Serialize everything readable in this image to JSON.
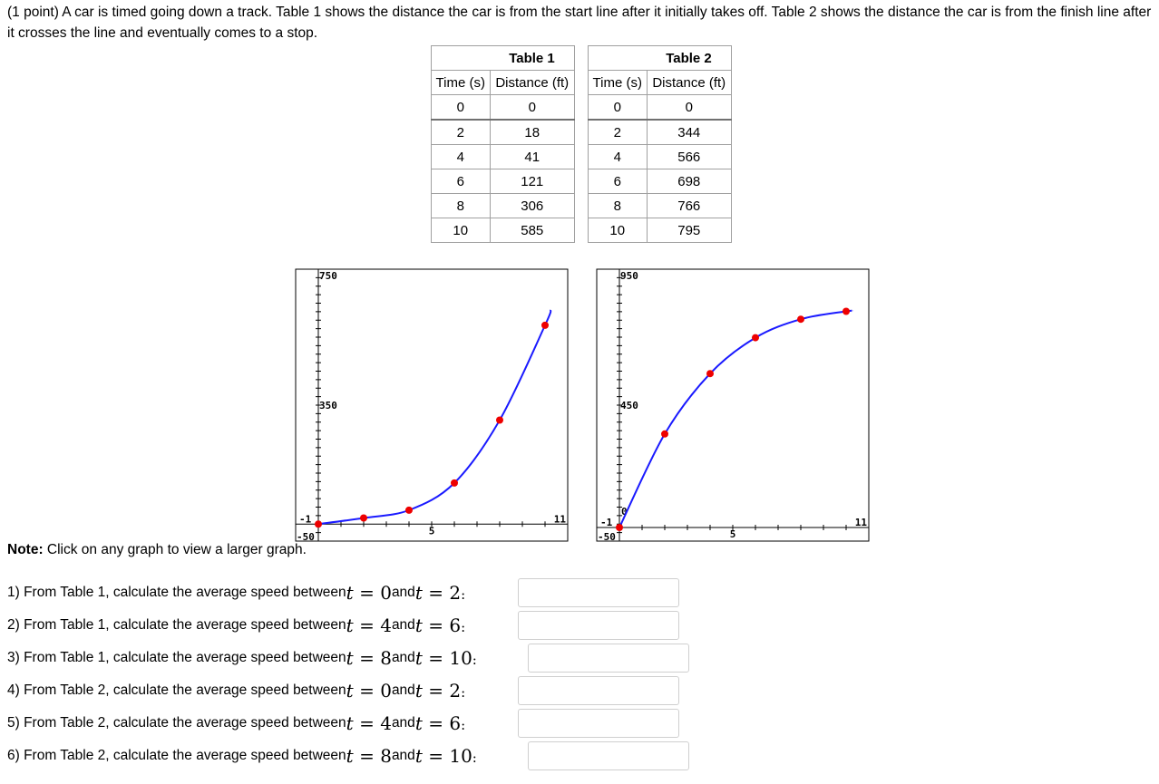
{
  "intro": "(1 point) A car is timed going down a track. Table 1 shows the distance the car is from the start line after it initially takes off. Table 2 shows the distance the car is from the finish line after it crosses the line and eventually comes to a stop.",
  "tables": [
    {
      "caption": "Table 1",
      "headers": [
        "Time (s)",
        "Distance (ft)"
      ],
      "rows": [
        [
          "0",
          "0"
        ],
        [
          "2",
          "18"
        ],
        [
          "4",
          "41"
        ],
        [
          "6",
          "121"
        ],
        [
          "8",
          "306"
        ],
        [
          "10",
          "585"
        ]
      ]
    },
    {
      "caption": "Table 2",
      "headers": [
        "Time (s)",
        "Distance (ft)"
      ],
      "rows": [
        [
          "0",
          "0"
        ],
        [
          "2",
          "344"
        ],
        [
          "4",
          "566"
        ],
        [
          "6",
          "698"
        ],
        [
          "8",
          "766"
        ],
        [
          "10",
          "795"
        ]
      ]
    }
  ],
  "graphs": [
    {
      "y_top_label": "750",
      "y_mid_label": "350",
      "y_bottom_label": "-50",
      "x_left_label": "-1",
      "x_mid_label": "5",
      "x_right_label": "11",
      "xlim": [
        -1,
        11
      ],
      "ylim": [
        -50,
        750
      ],
      "points": [
        [
          0,
          0
        ],
        [
          2,
          18
        ],
        [
          4,
          41
        ],
        [
          6,
          121
        ],
        [
          8,
          306
        ],
        [
          10,
          585
        ]
      ],
      "curve_color": "#1a1aff",
      "point_color": "#ee0000"
    },
    {
      "y_top_label": "950",
      "y_mid_label": "450",
      "y_bottom_label": "-50",
      "y_zero_label": "0",
      "x_left_label": "-1",
      "x_mid_label": "5",
      "x_right_label": "11",
      "xlim": [
        -1,
        11
      ],
      "ylim": [
        -50,
        950
      ],
      "points": [
        [
          0,
          0
        ],
        [
          2,
          344
        ],
        [
          4,
          566
        ],
        [
          6,
          698
        ],
        [
          8,
          766
        ],
        [
          10,
          795
        ]
      ],
      "curve_color": "#1a1aff",
      "point_color": "#ee0000"
    }
  ],
  "note": {
    "bold": "Note:",
    "text": " Click on any graph to view a larger graph."
  },
  "questions": [
    {
      "text": "1) From Table 1, calculate the average speed between ",
      "t1": "0",
      "t2": "2",
      "answer": ""
    },
    {
      "text": "2) From Table 1, calculate the average speed between ",
      "t1": "4",
      "t2": "6",
      "answer": ""
    },
    {
      "text": "3) From Table 1, calculate the average speed between ",
      "t1": "8",
      "t2": "10",
      "answer": ""
    },
    {
      "text": "4) From Table 2, calculate the average speed between ",
      "t1": "0",
      "t2": "2",
      "answer": ""
    },
    {
      "text": "5) From Table 2, calculate the average speed between ",
      "t1": "4",
      "t2": "6",
      "answer": ""
    },
    {
      "text": "6) From Table 2, calculate the average speed between ",
      "t1": "8",
      "t2": "10",
      "answer": ""
    }
  ],
  "math": {
    "var": "t",
    "eq": " = ",
    "and": " and ",
    "end": ":"
  }
}
